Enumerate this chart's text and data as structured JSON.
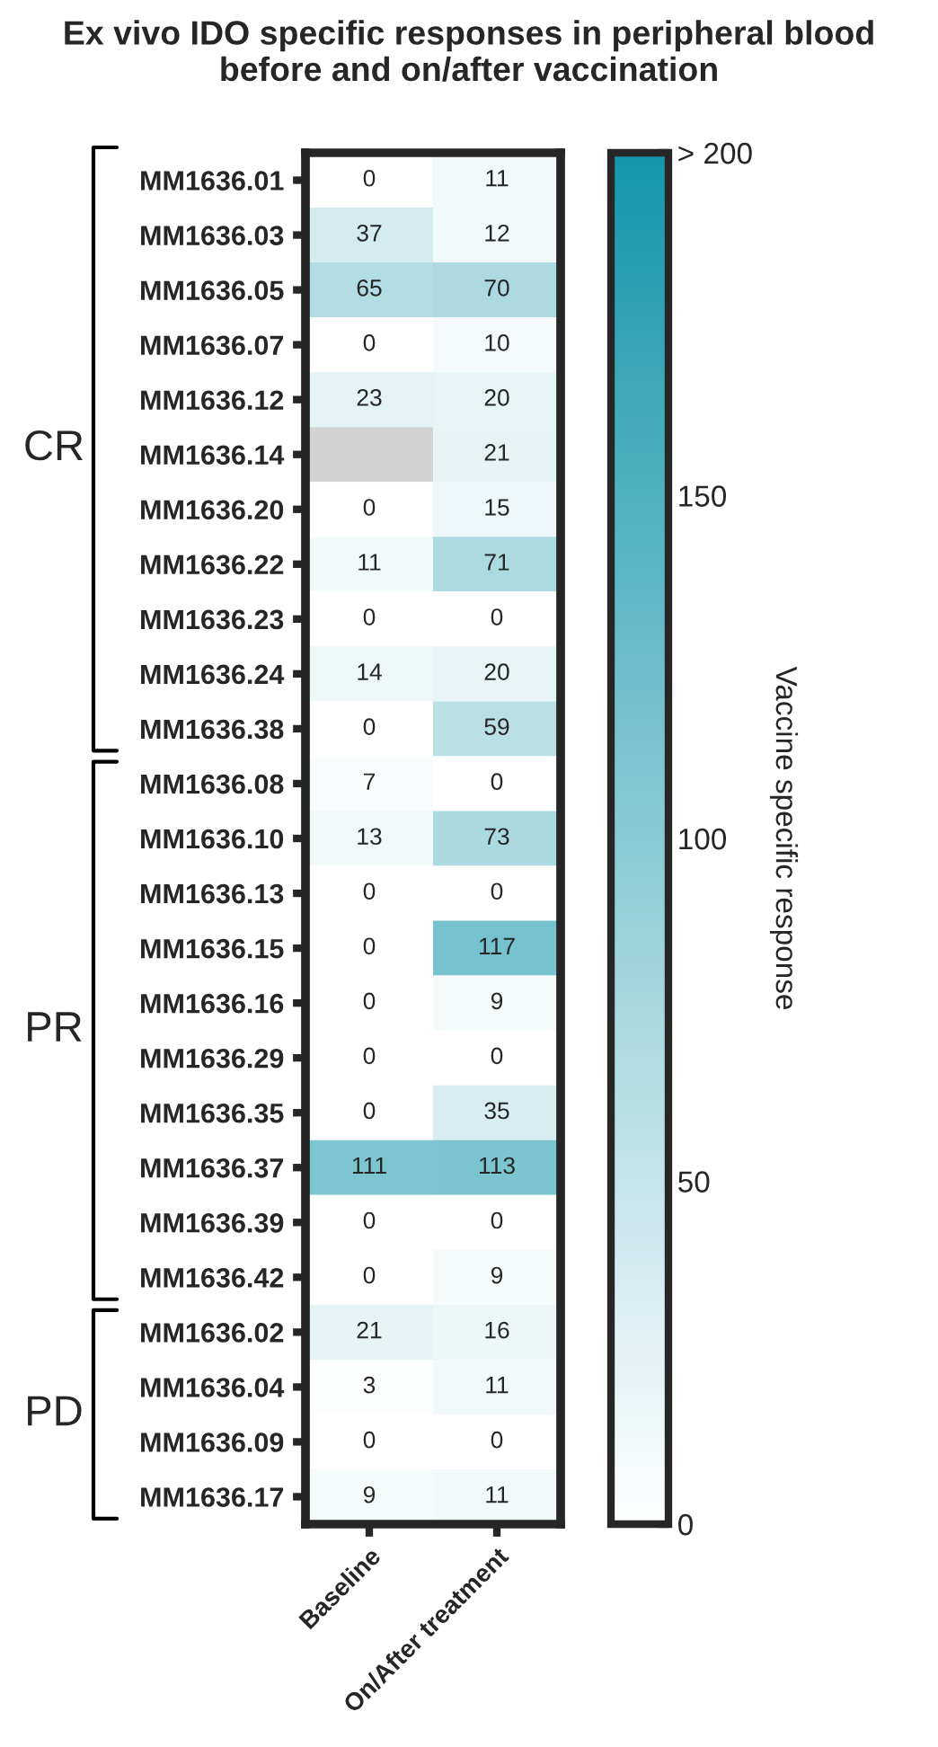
{
  "chart_data": {
    "type": "heatmap",
    "title": "Ex vivo IDO specific responses in peripheral blood\nbefore and on/after vaccination",
    "categories": [
      "Baseline",
      "On/After treatment"
    ],
    "y_categories": [
      "MM1636.01",
      "MM1636.03",
      "MM1636.05",
      "MM1636.07",
      "MM1636.12",
      "MM1636.14",
      "MM1636.20",
      "MM1636.22",
      "MM1636.23",
      "MM1636.24",
      "MM1636.38",
      "MM1636.08",
      "MM1636.10",
      "MM1636.13",
      "MM1636.15",
      "MM1636.16",
      "MM1636.29",
      "MM1636.35",
      "MM1636.37",
      "MM1636.39",
      "MM1636.42",
      "MM1636.02",
      "MM1636.04",
      "MM1636.09",
      "MM1636.17"
    ],
    "cells": [
      [
        0,
        11
      ],
      [
        37,
        12
      ],
      [
        65,
        70
      ],
      [
        0,
        10
      ],
      [
        23,
        20
      ],
      [
        null,
        21
      ],
      [
        0,
        15
      ],
      [
        11,
        71
      ],
      [
        0,
        0
      ],
      [
        14,
        20
      ],
      [
        0,
        59
      ],
      [
        7,
        0
      ],
      [
        13,
        73
      ],
      [
        0,
        0
      ],
      [
        0,
        117
      ],
      [
        0,
        9
      ],
      [
        0,
        0
      ],
      [
        0,
        35
      ],
      [
        111,
        113
      ],
      [
        0,
        0
      ],
      [
        0,
        9
      ],
      [
        21,
        16
      ],
      [
        3,
        11
      ],
      [
        0,
        0
      ],
      [
        9,
        11
      ]
    ],
    "data_labels": true,
    "clim": [
      0,
      200
    ],
    "cticks": [
      0,
      50,
      100,
      150,
      {
        "value": 200,
        "label": "> 200"
      }
    ],
    "clabel": "Vaccine specific response",
    "annotations": [
      "CR",
      "PR",
      "PD"
    ]
  }
}
